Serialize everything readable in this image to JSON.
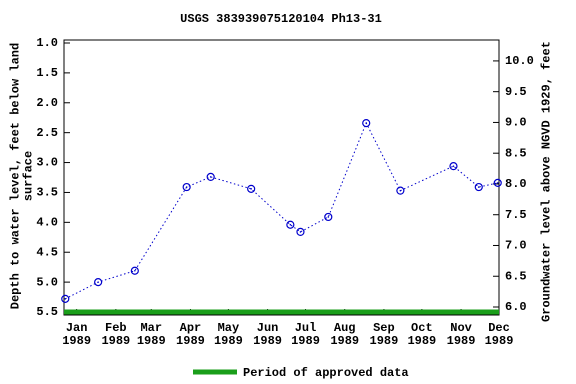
{
  "chart_data": {
    "type": "scatter",
    "title": "USGS 383939075120104 Ph13-31",
    "ylabel": "Depth to water level, feet below land surface",
    "y2label": "Groundwater level above NGVD 1929, feet",
    "xlim": [
      -10,
      334
    ],
    "xticks": [
      {
        "value": 0,
        "label": "Jan\n1989"
      },
      {
        "value": 31,
        "label": "Feb\n1989"
      },
      {
        "value": 59,
        "label": "Mar\n1989"
      },
      {
        "value": 90,
        "label": "Apr\n1989"
      },
      {
        "value": 120,
        "label": "May\n1989"
      },
      {
        "value": 151,
        "label": "Jun\n1989"
      },
      {
        "value": 181,
        "label": "Jul\n1989"
      },
      {
        "value": 212,
        "label": "Aug\n1989"
      },
      {
        "value": 243,
        "label": "Sep\n1989"
      },
      {
        "value": 273,
        "label": "Oct\n1989"
      },
      {
        "value": 304,
        "label": "Nov\n1989"
      },
      {
        "value": 334,
        "label": "Dec\n1989"
      }
    ],
    "ylim": [
      0.95,
      5.55
    ],
    "yticks": [
      {
        "value": 1,
        "label": "1.0"
      },
      1.5,
      {
        "value": 2,
        "label": "2.0"
      },
      2.5,
      {
        "value": 3,
        "label": "3.0"
      },
      3.5,
      {
        "value": 4,
        "label": "4.0"
      },
      4.5,
      {
        "value": 5,
        "label": "5.0"
      },
      5.5
    ],
    "y2lim": [
      10.34,
      5.87
    ],
    "y2ticks": [
      {
        "value": 6,
        "label": "6.0"
      },
      6.5,
      {
        "value": 7,
        "label": "7.0"
      },
      7.5,
      {
        "value": 8,
        "label": "8.0"
      },
      8.5,
      {
        "value": 9,
        "label": "9.0"
      },
      9.5,
      {
        "value": 10,
        "label": "10.0"
      }
    ],
    "series": [
      {
        "name": "Depth to water level",
        "color": "#0000cc",
        "x": [
          -9,
          17,
          46,
          87,
          106,
          138,
          169,
          177,
          199,
          229,
          256,
          298,
          318,
          333
        ],
        "values": [
          5.28,
          5.0,
          4.81,
          3.41,
          3.24,
          3.44,
          4.04,
          4.16,
          3.91,
          2.34,
          3.47,
          3.06,
          3.41,
          3.34
        ]
      }
    ],
    "approved_period": {
      "name": "Period of approved data",
      "color": "#1a9e1a",
      "x": [
        -10,
        334
      ]
    }
  }
}
